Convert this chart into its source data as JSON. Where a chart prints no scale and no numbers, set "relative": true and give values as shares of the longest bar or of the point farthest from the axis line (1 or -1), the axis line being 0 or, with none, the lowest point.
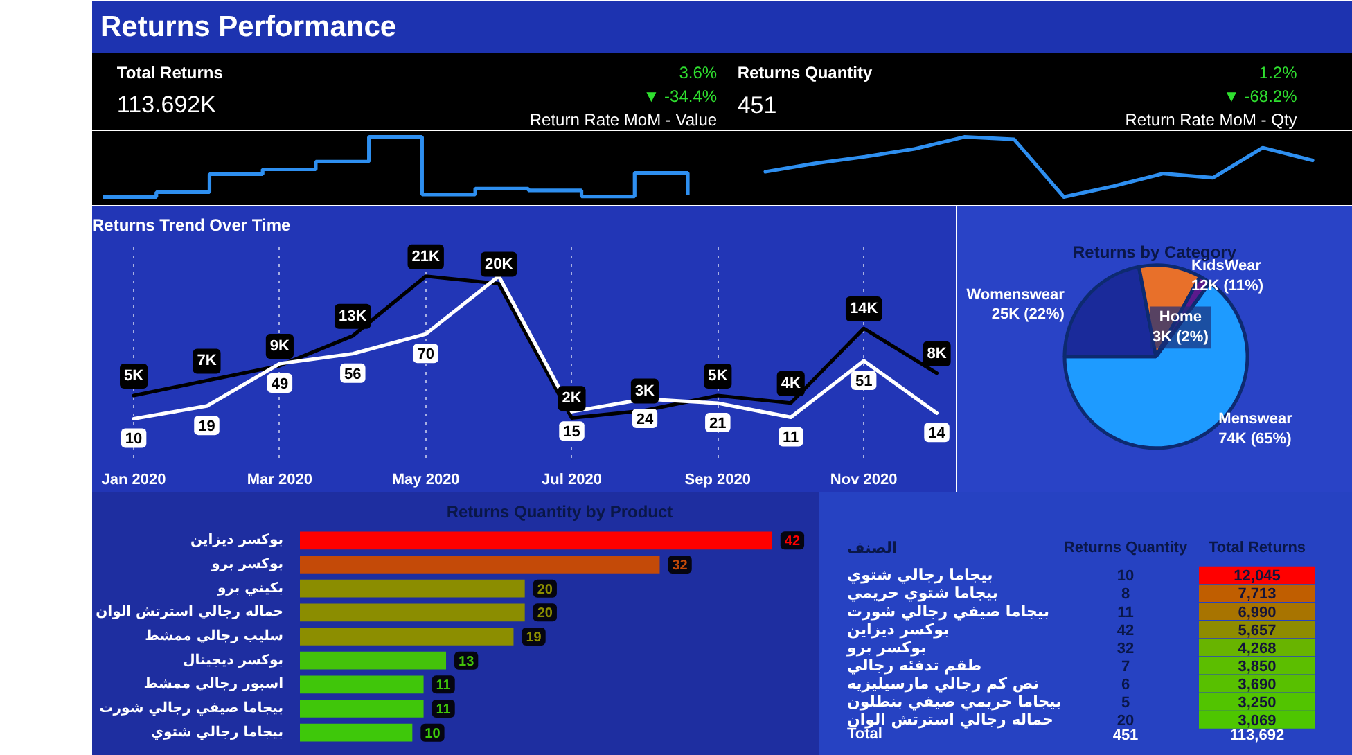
{
  "chart_data": [
    {
      "type": "other",
      "title": "Returns  Performance"
    },
    {
      "type": "other",
      "title": "Total Returns",
      "subtitle": "113.692K",
      "annotations": [
        "3.6%",
        "▼ -34.4%",
        "Return Rate MoM - Value"
      ]
    },
    {
      "type": "step",
      "relative": true,
      "tick_labels": false,
      "categories": [
        null,
        null,
        null,
        null,
        null,
        null,
        null,
        null,
        null,
        null,
        null,
        null
      ],
      "values": [
        0,
        0.08,
        0.38,
        0.46,
        0.59,
        1,
        0.04,
        0.14,
        0.11,
        0.01,
        0.4,
        0.03
      ],
      "color": "#2e8ff0"
    },
    {
      "type": "other",
      "title": "Returns Quantity",
      "subtitle": "451",
      "annotations": [
        "1.2%",
        "▼ -68.2%",
        "Return Rate MoM - Qty"
      ]
    },
    {
      "type": "line",
      "relative": true,
      "tick_labels": false,
      "categories": [
        null,
        null,
        null,
        null,
        null,
        null,
        null,
        null,
        null,
        null,
        null,
        null
      ],
      "values": [
        0.42,
        0.56,
        0.67,
        0.8,
        1,
        0.96,
        0,
        0.18,
        0.39,
        0.32,
        0.82,
        0.61
      ],
      "color": "#2e8ff0"
    },
    {
      "type": "line",
      "title": "Returns Trend Over Time",
      "categories": [
        "Jan 2020",
        null,
        "Mar 2020",
        null,
        "May 2020",
        null,
        "Jul 2020",
        null,
        "Sep 2020",
        null,
        "Nov 2020",
        null
      ],
      "series": [
        {
          "color": "#000000",
          "values": [
            5,
            7,
            9,
            13,
            21,
            20,
            2,
            3,
            5,
            4,
            14,
            8
          ],
          "value_labels": [
            "5K",
            "7K",
            "9K",
            "13K",
            "21K",
            "20K",
            "2K",
            "3K",
            "5K",
            "4K",
            "14K",
            "8K"
          ]
        },
        {
          "color": "#ffffff",
          "axis": "y2",
          "values": [
            10,
            19,
            49,
            56,
            70,
            111,
            15,
            24,
            21,
            11,
            51,
            14
          ],
          "value_labels": [
            "10",
            "19",
            "49",
            "56",
            "70",
            null,
            "15",
            "24",
            "21",
            "11",
            "51",
            "14"
          ]
        }
      ],
      "grid": "x",
      "tick_labels": "x"
    },
    {
      "type": "pie",
      "title": "Returns by Category",
      "categories": [
        "Menswear",
        "Womenswear",
        "KidsWear",
        "Home"
      ],
      "values": [
        65,
        22,
        11,
        2
      ],
      "value_labels": [
        "74K (65%)",
        "25K (22%)",
        "12K (11%)",
        "3K (2%)"
      ],
      "colors": [
        "#1e9bff",
        "#1a2a9a",
        "#e8702a",
        "#5a1a8c"
      ]
    },
    {
      "type": "bar",
      "orientation": "horizontal",
      "title": "Returns Quantity by Product",
      "categories": [
        "بوكسر ديزاين",
        "بوكسر برو",
        "بكيني برو",
        "حماله رجالي استرتش الوان",
        "سليب رجالي ممشط",
        "بوكسر ديجيتال",
        "اسبور رجالي ممشط",
        "بيجاما صيفي رجالي شورت",
        "بيجاما رجالي شتوي"
      ],
      "values": [
        42,
        32,
        20,
        20,
        19,
        13,
        11,
        11,
        10
      ],
      "colors": [
        "#ff0000",
        "#c44a08",
        "#8b8d00",
        "#8b8d00",
        "#8c8e00",
        "#44c20a",
        "#40c60a",
        "#40c60a",
        "#3ec80a"
      ],
      "data_labels": true,
      "tick_labels": "y"
    },
    {
      "type": "other",
      "ylabel": "الصنف",
      "categories": [
        "بيجاما رجالي شتوي",
        "بيجاما شتوي حريمي",
        "بيجاما صيفي رجالي شورت",
        "بوكسر ديزاين",
        "بوكسر برو",
        "طقم تدفئه رجالي",
        "نص كم رجالي مارسيليزيه",
        "بيجاما حريمي صيفي بنطلون",
        "حماله رجالي استرتش الوان"
      ],
      "series": [
        {
          "name": "Returns Quantity",
          "values": [
            10,
            8,
            11,
            42,
            32,
            7,
            6,
            5,
            20
          ],
          "value_labels": [
            "10",
            "8",
            "11",
            "42",
            "32",
            "7",
            "6",
            "5",
            "20"
          ]
        },
        {
          "name": "Total Returns",
          "values": [
            12045,
            7713,
            6990,
            5657,
            4268,
            3850,
            3690,
            3250,
            3069
          ],
          "value_labels": [
            "12,045",
            "7,713",
            "6,990",
            "5,657",
            "4,268",
            "3,850",
            "3,690",
            "3,250",
            "3,069"
          ],
          "colors": [
            "#ff0000",
            "#c05e00",
            "#a87400",
            "#8e8c00",
            "#68b400",
            "#5cbe00",
            "#58c000",
            "#52c400",
            "#4ec600"
          ]
        }
      ],
      "annotations": [
        "Total"
      ],
      "totals": [
        "451",
        "113,692"
      ]
    }
  ]
}
